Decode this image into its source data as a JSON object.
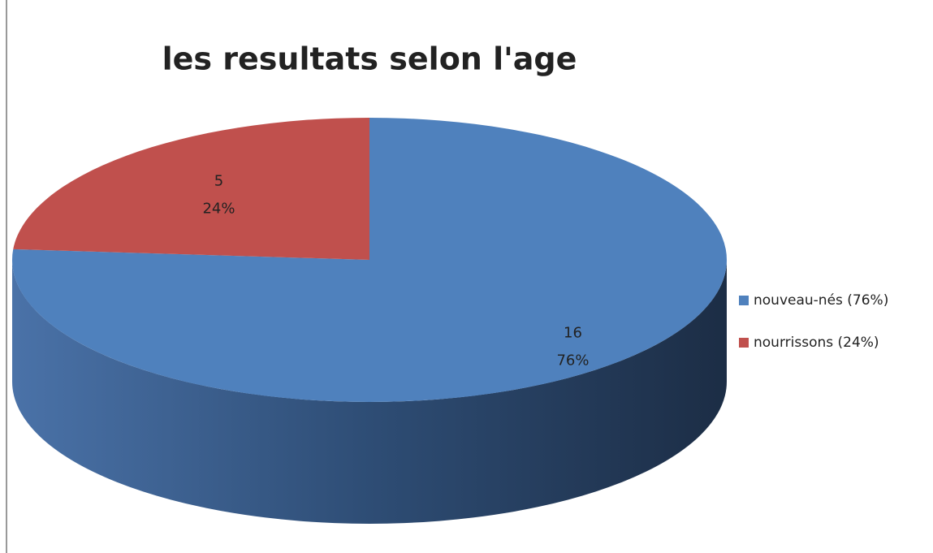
{
  "chart_data": {
    "type": "pie",
    "title": "les resultats selon l'age",
    "categories": [
      "nouveau-nés (76%)",
      "nourrissons (24%)"
    ],
    "values": [
      16,
      5
    ],
    "percents": [
      76,
      24
    ],
    "percent_labels": [
      "76%",
      "24%"
    ],
    "colors": [
      "#4f81bd",
      "#c0504d"
    ],
    "legend": "right"
  }
}
